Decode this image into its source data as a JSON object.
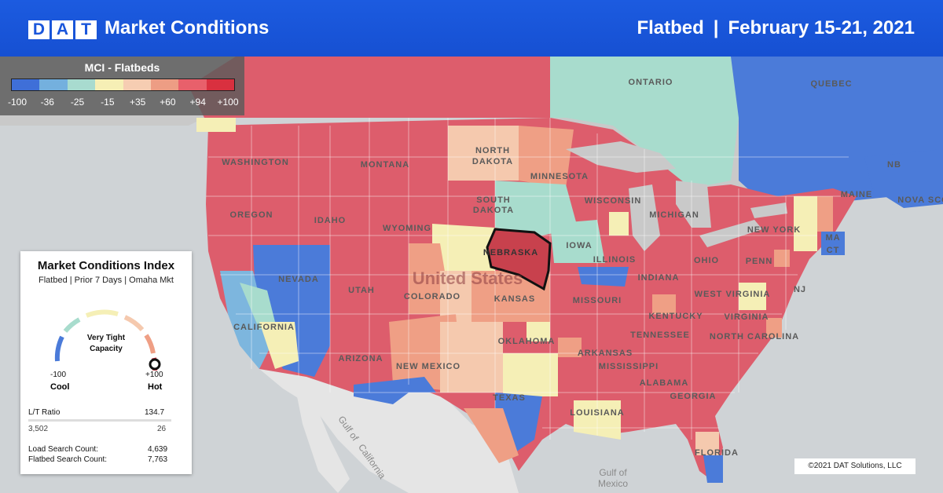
{
  "header": {
    "logo_letters": [
      "D",
      "A",
      "T"
    ],
    "title": "Market Conditions",
    "equipment": "Flatbed",
    "separator": "|",
    "date_range": "February 15-21, 2021"
  },
  "legend": {
    "title": "MCI - Flatbeds",
    "ticks": [
      "-100",
      "-36",
      "-25",
      "-15",
      "+35",
      "+60",
      "+94",
      "+100"
    ],
    "colors": [
      "#3f6fd8",
      "#74b0de",
      "#a8dbcf",
      "#f6efb5",
      "#f6cdb2",
      "#ed9d84",
      "#e8606b",
      "#d9303f"
    ]
  },
  "panel": {
    "title": "Market Conditions Index",
    "subtitle": "Flatbed | Prior 7 Days | Omaha Mkt",
    "gauge_label_line1": "Very Tight",
    "gauge_label_line2": "Capacity",
    "gauge_value": 100,
    "min_label": "-100",
    "max_label": "+100",
    "cool_label": "Cool",
    "hot_label": "Hot",
    "lt_ratio_label": "L/T Ratio",
    "lt_ratio_value": "134.7",
    "loads_value": "3,502",
    "trucks_value": "26",
    "load_search_label": "Load Search Count:",
    "load_search_value": "4,639",
    "flatbed_search_label": "Flatbed Search Count:",
    "flatbed_search_value": "7,763"
  },
  "map": {
    "country_label": "United States",
    "selected_market": "NEBRASKA",
    "colors": {
      "hot": "#dd5d6c",
      "warm": "#ef9f85",
      "mild_warm": "#f5c9ae",
      "neutral": "#f5efb6",
      "cool_mint": "#a8dccd",
      "cool_blue": "#7db6de",
      "cold": "#4b7bd9",
      "land_grey": "#c9c9c9",
      "water": "#cfd3d6"
    },
    "place_labels": {
      "ontario": "ONTARIO",
      "quebec": "QUEBEC",
      "nb": "NB",
      "nova_scotia": "NOVA SCO",
      "washington": "WASHINGTON",
      "montana": "MONTANA",
      "north_dakota_1": "NORTH",
      "north_dakota_2": "DAKOTA",
      "minnesota": "MINNESOTA",
      "south_dakota_1": "SOUTH",
      "south_dakota_2": "DAKOTA",
      "wisconsin": "WISCONSIN",
      "michigan": "MICHIGAN",
      "oregon": "OREGON",
      "idaho": "IDAHO",
      "wyoming": "WYOMING",
      "nebraska": "NEBRASKA",
      "iowa": "IOWA",
      "illinois": "ILLINOIS",
      "indiana": "INDIANA",
      "ohio": "OHIO",
      "new_york": "NEW YORK",
      "maine": "MAINE",
      "penn": "PENN",
      "ct": "CT",
      "ma": "MA",
      "nj": "NJ",
      "nevada": "NEVADA",
      "utah": "UTAH",
      "colorado": "COLORADO",
      "kansas": "KANSAS",
      "missouri": "MISSOURI",
      "west_virginia": "WEST VIRGINIA",
      "virginia": "VIRGINIA",
      "kentucky": "KENTUCKY",
      "california": "CALIFORNIA",
      "arizona": "ARIZONA",
      "new_mexico": "NEW MEXICO",
      "oklahoma": "OKLAHOMA",
      "arkansas": "ARKANSAS",
      "tennessee": "TENNESSEE",
      "north_carolina": "NORTH CAROLINA",
      "mississippi": "MISSISSIPPI",
      "alabama": "ALABAMA",
      "georgia": "GEORGIA",
      "texas": "TEXAS",
      "louisiana": "LOUISIANA",
      "florida": "FLORIDA",
      "gulf_ca_1": "Gulf of",
      "gulf_ca_2": "California",
      "gulf_mx_1": "Gulf of",
      "gulf_mx_2": "Mexico"
    }
  },
  "copyright": "©2021 DAT Solutions, LLC"
}
